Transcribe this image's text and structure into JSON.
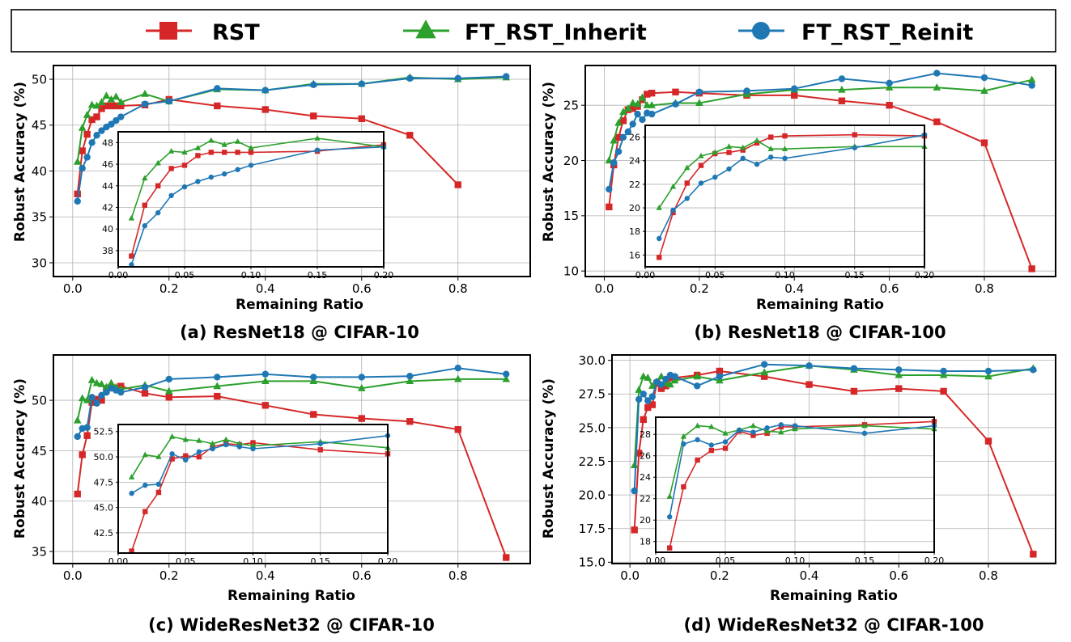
{
  "colors": {
    "RST": "#d62728",
    "FT_RST_Inherit": "#2ca02c",
    "FT_RST_Reinit": "#1f77b4"
  },
  "legend": {
    "items": [
      {
        "key": "RST",
        "label": "RST",
        "marker": "square"
      },
      {
        "key": "FT_RST_Inherit",
        "label": "FT_RST_Inherit",
        "marker": "triangle"
      },
      {
        "key": "FT_RST_Reinit",
        "label": "FT_RST_Reinit",
        "marker": "circle"
      }
    ]
  },
  "chart_data": [
    {
      "type": "line",
      "caption": "(a) ResNet18 @ CIFAR-10",
      "xlabel": "Remaining Ratio",
      "ylabel": "Robust Accuracy (%)",
      "xlim": [
        -0.04,
        0.95
      ],
      "ylim": [
        28.5,
        51.5
      ],
      "xticks": [
        0.0,
        0.2,
        0.4,
        0.6,
        0.8
      ],
      "xtick_labels": [
        "0.0",
        "0.2",
        "0.4",
        "0.6",
        "0.8"
      ],
      "yticks": [
        30,
        35,
        40,
        45,
        50
      ],
      "ytick_labels": [
        "30",
        "35",
        "40",
        "45",
        "50"
      ],
      "grid": true,
      "series": [
        {
          "name": "RST",
          "x": [
            0.01,
            0.02,
            0.03,
            0.04,
            0.05,
            0.06,
            0.07,
            0.08,
            0.09,
            0.1,
            0.15,
            0.2,
            0.3,
            0.4,
            0.5,
            0.6,
            0.7,
            0.8,
            0.9
          ],
          "y": [
            37.5,
            42.2,
            44.0,
            45.6,
            45.9,
            46.8,
            47.1,
            47.1,
            47.1,
            47.1,
            47.2,
            47.8,
            47.1,
            46.7,
            46.0,
            45.7,
            43.9,
            38.5,
            28.2
          ]
        },
        {
          "name": "FT_RST_Inherit",
          "x": [
            0.01,
            0.02,
            0.03,
            0.04,
            0.05,
            0.06,
            0.07,
            0.08,
            0.09,
            0.1,
            0.15,
            0.2,
            0.3,
            0.4,
            0.5,
            0.6,
            0.7,
            0.8,
            0.9
          ],
          "y": [
            41.0,
            44.7,
            46.1,
            47.2,
            47.1,
            47.5,
            48.2,
            47.8,
            48.1,
            47.5,
            48.4,
            47.6,
            48.9,
            48.8,
            49.5,
            49.5,
            50.2,
            50.0,
            50.2
          ]
        },
        {
          "name": "FT_RST_Reinit",
          "x": [
            0.01,
            0.02,
            0.03,
            0.04,
            0.05,
            0.06,
            0.07,
            0.08,
            0.09,
            0.1,
            0.15,
            0.2,
            0.3,
            0.4,
            0.5,
            0.6,
            0.7,
            0.8,
            0.9
          ],
          "y": [
            36.7,
            40.3,
            41.5,
            43.1,
            43.9,
            44.4,
            44.8,
            45.1,
            45.5,
            45.9,
            47.3,
            47.6,
            49.0,
            48.8,
            49.4,
            49.5,
            50.1,
            50.1,
            50.3
          ]
        }
      ],
      "inset": {
        "xlim": [
          0.0,
          0.2
        ],
        "ylim": [
          36.5,
          49.0
        ],
        "xticks": [
          0.0,
          0.05,
          0.1,
          0.15,
          0.2
        ],
        "xtick_labels": [
          "0.00",
          "0.05",
          "0.10",
          "0.15",
          "0.20"
        ],
        "yticks": [
          38,
          40,
          42,
          44,
          46,
          48
        ],
        "ytick_labels": [
          "38",
          "40",
          "42",
          "44",
          "46",
          "48"
        ]
      }
    },
    {
      "type": "line",
      "caption": "(b) ResNet18 @ CIFAR-100",
      "xlabel": "Remaining Ratio",
      "ylabel": "Robust Accuracy (%)",
      "xlim": [
        -0.04,
        0.95
      ],
      "ylim": [
        9.5,
        28.6
      ],
      "xticks": [
        0.0,
        0.2,
        0.4,
        0.6,
        0.8
      ],
      "xtick_labels": [
        "0.0",
        "0.2",
        "0.4",
        "0.6",
        "0.8"
      ],
      "yticks": [
        10,
        15,
        20,
        25
      ],
      "ytick_labels": [
        "10",
        "15",
        "20",
        "25"
      ],
      "grid": true,
      "series": [
        {
          "name": "RST",
          "x": [
            0.01,
            0.02,
            0.03,
            0.04,
            0.05,
            0.06,
            0.07,
            0.08,
            0.09,
            0.1,
            0.15,
            0.2,
            0.3,
            0.4,
            0.5,
            0.6,
            0.7,
            0.8,
            0.9
          ],
          "y": [
            15.8,
            19.6,
            22.1,
            23.6,
            24.6,
            24.7,
            24.9,
            25.5,
            26.0,
            26.1,
            26.2,
            26.1,
            25.9,
            25.9,
            25.4,
            25.0,
            23.5,
            21.6,
            10.2
          ]
        },
        {
          "name": "FT_RST_Inherit",
          "x": [
            0.01,
            0.02,
            0.03,
            0.04,
            0.05,
            0.06,
            0.07,
            0.08,
            0.09,
            0.1,
            0.15,
            0.2,
            0.3,
            0.4,
            0.5,
            0.6,
            0.7,
            0.8,
            0.9
          ],
          "y": [
            20.0,
            21.8,
            23.4,
            24.4,
            24.7,
            25.2,
            25.1,
            25.7,
            25.0,
            25.0,
            25.2,
            25.2,
            26.0,
            26.4,
            26.4,
            26.6,
            26.6,
            26.3,
            27.3
          ]
        },
        {
          "name": "FT_RST_Reinit",
          "x": [
            0.01,
            0.02,
            0.03,
            0.04,
            0.05,
            0.06,
            0.07,
            0.08,
            0.09,
            0.1,
            0.15,
            0.2,
            0.3,
            0.4,
            0.5,
            0.6,
            0.7,
            0.8,
            0.9
          ],
          "y": [
            17.4,
            19.8,
            20.8,
            22.1,
            22.6,
            23.3,
            24.2,
            23.7,
            24.3,
            24.2,
            25.1,
            26.2,
            26.3,
            26.5,
            27.4,
            27.0,
            27.9,
            27.5,
            26.8
          ]
        }
      ],
      "inset": {
        "xlim": [
          0.0,
          0.2
        ],
        "ylim": [
          15.0,
          27.0
        ],
        "xticks": [
          0.0,
          0.05,
          0.1,
          0.15,
          0.2
        ],
        "xtick_labels": [
          "0.00",
          "0.05",
          "0.10",
          "0.15",
          "0.20"
        ],
        "yticks": [
          16,
          18,
          20,
          22,
          24,
          26
        ],
        "ytick_labels": [
          "16",
          "18",
          "20",
          "22",
          "24",
          "26"
        ]
      }
    },
    {
      "type": "line",
      "caption": "(c) WideResNet32 @ CIFAR-10",
      "xlabel": "Remaining Ratio",
      "ylabel": "Robust Accuracy (%)",
      "xlim": [
        -0.04,
        0.95
      ],
      "ylim": [
        33.8,
        54.5
      ],
      "xticks": [
        0.0,
        0.2,
        0.4,
        0.6,
        0.8
      ],
      "xtick_labels": [
        "0.0",
        "0.2",
        "0.4",
        "0.6",
        "0.8"
      ],
      "yticks": [
        35,
        40,
        45,
        50
      ],
      "ytick_labels": [
        "35",
        "40",
        "45",
        "50"
      ],
      "grid": true,
      "series": [
        {
          "name": "RST",
          "x": [
            0.01,
            0.02,
            0.03,
            0.04,
            0.05,
            0.06,
            0.07,
            0.08,
            0.09,
            0.1,
            0.15,
            0.2,
            0.3,
            0.4,
            0.5,
            0.6,
            0.7,
            0.8,
            0.9
          ],
          "y": [
            40.7,
            44.6,
            46.5,
            49.8,
            50.1,
            50.0,
            51.0,
            51.3,
            51.2,
            51.4,
            50.7,
            50.3,
            50.4,
            49.5,
            48.6,
            48.2,
            47.9,
            47.1,
            34.4
          ]
        },
        {
          "name": "FT_RST_Inherit",
          "x": [
            0.01,
            0.02,
            0.03,
            0.04,
            0.05,
            0.06,
            0.07,
            0.08,
            0.09,
            0.1,
            0.15,
            0.2,
            0.3,
            0.4,
            0.5,
            0.6,
            0.7,
            0.8,
            0.9
          ],
          "y": [
            48.0,
            50.2,
            50.0,
            52.0,
            51.7,
            51.6,
            51.3,
            51.7,
            51.3,
            51.1,
            51.5,
            50.9,
            51.4,
            51.9,
            51.9,
            51.2,
            51.9,
            52.1,
            52.1
          ]
        },
        {
          "name": "FT_RST_Reinit",
          "x": [
            0.01,
            0.02,
            0.03,
            0.04,
            0.05,
            0.06,
            0.07,
            0.08,
            0.09,
            0.1,
            0.15,
            0.2,
            0.3,
            0.4,
            0.5,
            0.6,
            0.7,
            0.8,
            0.9
          ],
          "y": [
            46.4,
            47.2,
            47.3,
            50.3,
            49.7,
            50.5,
            50.8,
            51.2,
            51.0,
            50.8,
            51.3,
            52.1,
            52.3,
            52.6,
            52.3,
            52.3,
            52.4,
            53.2,
            52.6
          ]
        }
      ],
      "inset": {
        "xlim": [
          0.0,
          0.2
        ],
        "ylim": [
          40.5,
          53.2
        ],
        "xticks": [
          0.0,
          0.05,
          0.1,
          0.15,
          0.2
        ],
        "xtick_labels": [
          "0.00",
          "0.05",
          "0.10",
          "0.15",
          "0.20"
        ],
        "yticks": [
          42.5,
          45.0,
          47.5,
          50.0,
          52.5
        ],
        "ytick_labels": [
          "42.5",
          "45.0",
          "47.5",
          "50.0",
          "52.5"
        ]
      }
    },
    {
      "type": "line",
      "caption": "(d) WideResNet32 @ CIFAR-100",
      "xlabel": "Remaining Ratio",
      "ylabel": "Robust Accuracy (%)",
      "xlim": [
        -0.04,
        0.95
      ],
      "ylim": [
        14.9,
        30.4
      ],
      "xticks": [
        0.0,
        0.2,
        0.4,
        0.6,
        0.8
      ],
      "xtick_labels": [
        "0.0",
        "0.2",
        "0.4",
        "0.6",
        "0.8"
      ],
      "yticks": [
        15.0,
        17.5,
        20.0,
        22.5,
        25.0,
        27.5,
        30.0
      ],
      "ytick_labels": [
        "15.0",
        "17.5",
        "20.0",
        "22.5",
        "25.0",
        "27.5",
        "30.0"
      ],
      "grid": true,
      "series": [
        {
          "name": "RST",
          "x": [
            0.01,
            0.02,
            0.03,
            0.04,
            0.05,
            0.06,
            0.07,
            0.08,
            0.09,
            0.1,
            0.15,
            0.2,
            0.3,
            0.4,
            0.5,
            0.6,
            0.7,
            0.8,
            0.9
          ],
          "y": [
            17.4,
            23.1,
            25.6,
            26.5,
            26.7,
            28.3,
            27.9,
            28.1,
            28.7,
            28.7,
            28.9,
            29.2,
            28.8,
            28.2,
            27.7,
            27.9,
            27.7,
            24.0,
            15.6
          ]
        },
        {
          "name": "FT_RST_Inherit",
          "x": [
            0.01,
            0.02,
            0.03,
            0.04,
            0.05,
            0.06,
            0.07,
            0.08,
            0.09,
            0.1,
            0.15,
            0.2,
            0.3,
            0.4,
            0.5,
            0.6,
            0.7,
            0.8,
            0.9
          ],
          "y": [
            22.2,
            27.8,
            28.8,
            28.7,
            28.1,
            28.4,
            28.8,
            28.3,
            28.2,
            28.5,
            28.8,
            28.5,
            29.1,
            29.6,
            29.3,
            28.9,
            28.9,
            28.8,
            29.4
          ]
        },
        {
          "name": "FT_RST_Reinit",
          "x": [
            0.01,
            0.02,
            0.03,
            0.04,
            0.05,
            0.06,
            0.07,
            0.08,
            0.09,
            0.1,
            0.15,
            0.2,
            0.3,
            0.4,
            0.5,
            0.6,
            0.7,
            0.8,
            0.9
          ],
          "y": [
            20.3,
            27.1,
            27.5,
            27.0,
            27.3,
            28.4,
            28.2,
            28.6,
            28.9,
            28.8,
            28.1,
            28.8,
            29.7,
            29.6,
            29.4,
            29.3,
            29.2,
            29.2,
            29.3
          ]
        }
      ],
      "inset": {
        "xlim": [
          0.0,
          0.2
        ],
        "ylim": [
          17.0,
          29.6
        ],
        "xticks": [
          0.0,
          0.05,
          0.1,
          0.15,
          0.2
        ],
        "xtick_labels": [
          "0.00",
          "0.05",
          "0.10",
          "0.15",
          "0.20"
        ],
        "yticks": [
          18,
          20,
          22,
          24,
          26,
          28
        ],
        "ytick_labels": [
          "18",
          "20",
          "22",
          "24",
          "26",
          "28"
        ]
      }
    }
  ]
}
